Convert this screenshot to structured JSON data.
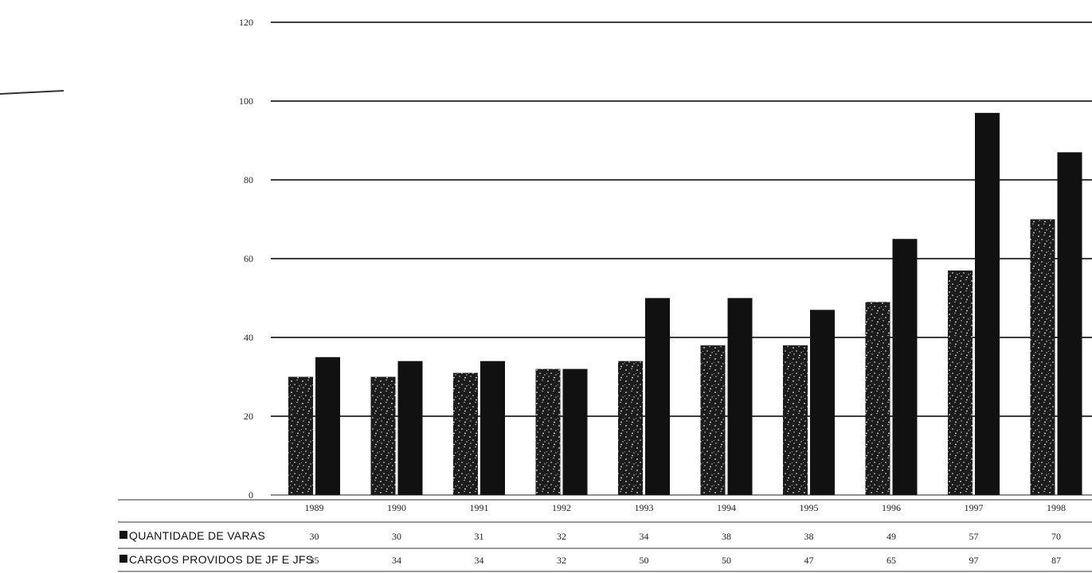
{
  "chart_data": {
    "type": "bar",
    "categories": [
      "1989",
      "1990",
      "1991",
      "1992",
      "1993",
      "1994",
      "1995",
      "1996",
      "1997",
      "1998"
    ],
    "series": [
      {
        "name": "QUANTIDADE DE VARAS",
        "values": [
          30,
          30,
          31,
          32,
          34,
          38,
          38,
          49,
          57,
          70
        ],
        "labels": [
          "30",
          "30",
          "31",
          "32",
          "34",
          "38",
          "38",
          "49",
          "57",
          "70"
        ],
        "color": "#1a1a1a",
        "pattern": "speckled"
      },
      {
        "name": "CARGOS PROVIDOS DE JF E JFS",
        "values": [
          35,
          34,
          34,
          32,
          50,
          50,
          47,
          65,
          97,
          87
        ],
        "labels": [
          "35",
          "34",
          "34",
          "32",
          "50",
          "50",
          "47",
          "65",
          "97",
          "87"
        ],
        "color": "#111111",
        "pattern": "solid"
      }
    ],
    "yticks": [
      "0",
      "20",
      "40",
      "60",
      "80",
      "100",
      "120"
    ],
    "ylim": [
      0,
      120
    ],
    "grid": true,
    "legend": "data-table-below",
    "title": "",
    "xlabel": "",
    "ylabel": ""
  }
}
